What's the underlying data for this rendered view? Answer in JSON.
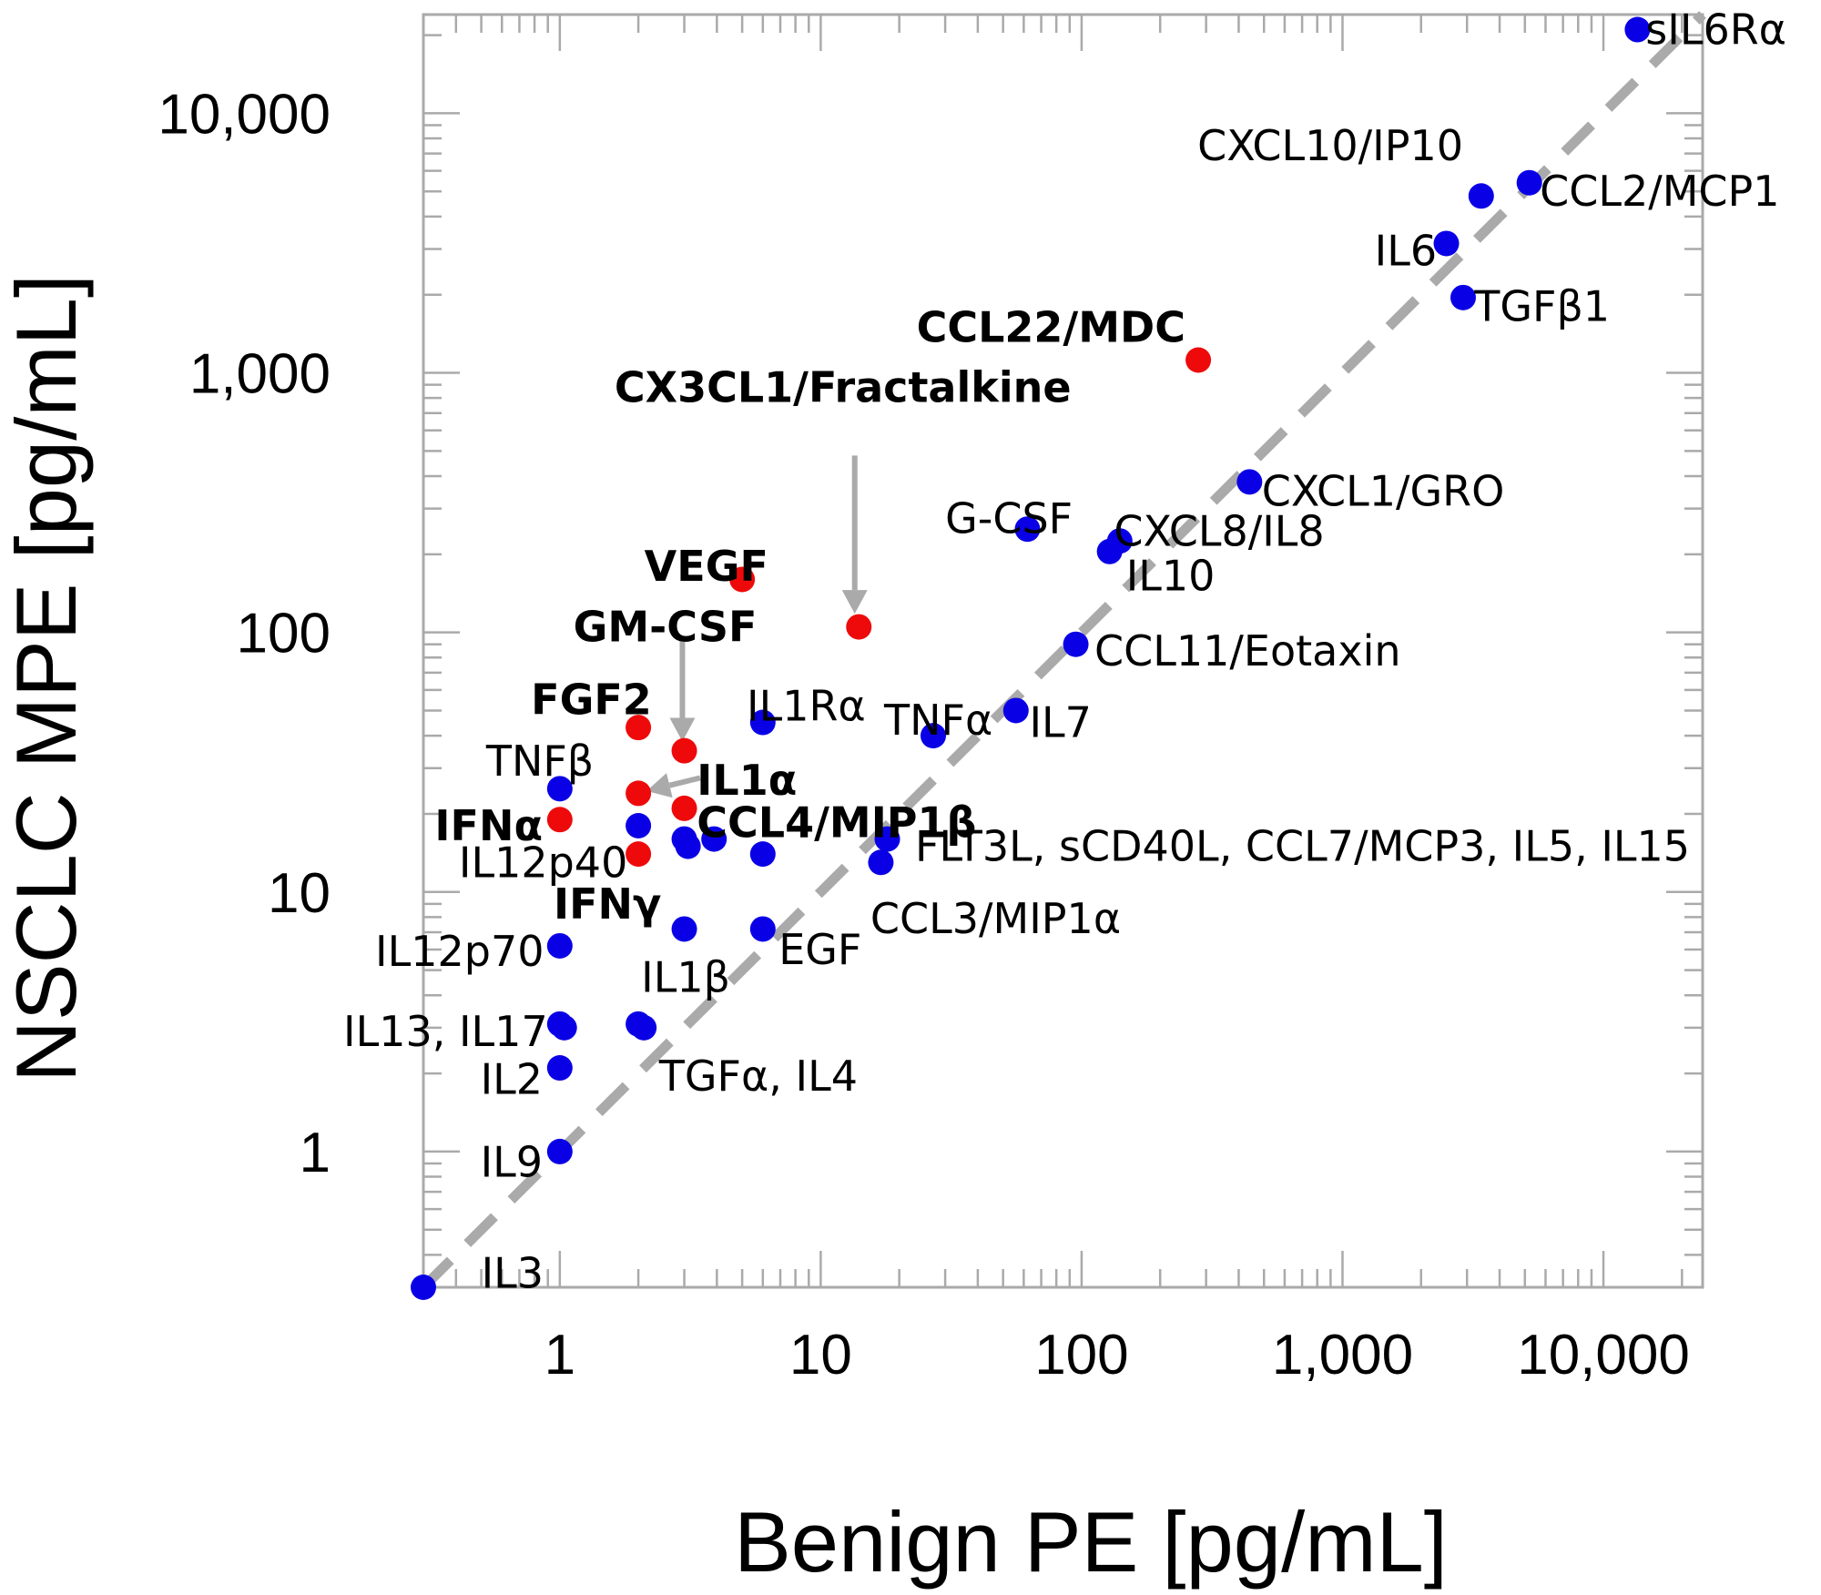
{
  "chart_data": {
    "type": "scatter",
    "title": "",
    "xlabel": "Benign PE [pg/mL]",
    "ylabel": "NSCLC MPE [pg/mL]",
    "x_scale": "log",
    "y_scale": "log",
    "xlim": [
      0.3,
      24000
    ],
    "ylim": [
      0.3,
      24000
    ],
    "grid": false,
    "legend": "none",
    "x_ticks": [
      {
        "value": 1,
        "label": "1"
      },
      {
        "value": 10,
        "label": "10"
      },
      {
        "value": 100,
        "label": "100"
      },
      {
        "value": 1000,
        "label": "1,000"
      },
      {
        "value": 10000,
        "label": "10,000"
      }
    ],
    "y_ticks": [
      {
        "value": 1,
        "label": "1"
      },
      {
        "value": 10,
        "label": "10"
      },
      {
        "value": 100,
        "label": "100"
      },
      {
        "value": 1000,
        "label": "1,000"
      },
      {
        "value": 10000,
        "label": "10,000"
      }
    ],
    "reference_line": {
      "style": "dashed",
      "color": "#aaaaaa",
      "from": [
        0.3,
        0.3
      ],
      "to": [
        24000,
        24000
      ]
    },
    "colors": {
      "unchanged": "#0a00e6",
      "elevated": "#ee0a0a",
      "arrow": "#aaaaaa",
      "axis": "#aaaaaa"
    },
    "points": [
      {
        "x": 0.3,
        "y": 0.3,
        "color": "blue"
      },
      {
        "x": 1.0,
        "y": 1.0,
        "color": "blue"
      },
      {
        "x": 1.0,
        "y": 2.1,
        "color": "blue"
      },
      {
        "x": 1.0,
        "y": 3.1,
        "color": "blue"
      },
      {
        "x": 1.04,
        "y": 3.0,
        "color": "blue"
      },
      {
        "x": 1.0,
        "y": 6.2,
        "color": "blue"
      },
      {
        "x": 1.0,
        "y": 19.0,
        "color": "red"
      },
      {
        "x": 1.0,
        "y": 25.0,
        "color": "blue"
      },
      {
        "x": 2.0,
        "y": 14.0,
        "color": "red"
      },
      {
        "x": 2.0,
        "y": 18.0,
        "color": "blue"
      },
      {
        "x": 2.0,
        "y": 24.0,
        "color": "red"
      },
      {
        "x": 2.0,
        "y": 43.0,
        "color": "red"
      },
      {
        "x": 2.0,
        "y": 3.1,
        "color": "blue"
      },
      {
        "x": 2.1,
        "y": 3.0,
        "color": "blue"
      },
      {
        "x": 3.0,
        "y": 7.2,
        "color": "blue"
      },
      {
        "x": 3.0,
        "y": 16.0,
        "color": "blue"
      },
      {
        "x": 3.1,
        "y": 15.0,
        "color": "blue"
      },
      {
        "x": 3.0,
        "y": 21.0,
        "color": "red"
      },
      {
        "x": 3.0,
        "y": 35.0,
        "color": "red"
      },
      {
        "x": 3.9,
        "y": 16.0,
        "color": "blue"
      },
      {
        "x": 5.0,
        "y": 160.0,
        "color": "red"
      },
      {
        "x": 6.0,
        "y": 7.2,
        "color": "blue"
      },
      {
        "x": 6.0,
        "y": 14.0,
        "color": "blue"
      },
      {
        "x": 6.0,
        "y": 45.0,
        "color": "blue"
      },
      {
        "x": 14.0,
        "y": 105.0,
        "color": "red"
      },
      {
        "x": 17.0,
        "y": 13.0,
        "color": "blue"
      },
      {
        "x": 18.0,
        "y": 16.0,
        "color": "blue"
      },
      {
        "x": 27.0,
        "y": 40.0,
        "color": "blue"
      },
      {
        "x": 56.0,
        "y": 50.0,
        "color": "blue"
      },
      {
        "x": 62.0,
        "y": 250.0,
        "color": "blue"
      },
      {
        "x": 95.0,
        "y": 90.0,
        "color": "blue"
      },
      {
        "x": 128.0,
        "y": 205.0,
        "color": "blue"
      },
      {
        "x": 140.0,
        "y": 225.0,
        "color": "blue"
      },
      {
        "x": 280.0,
        "y": 1120.0,
        "color": "red"
      },
      {
        "x": 440.0,
        "y": 380.0,
        "color": "blue"
      },
      {
        "x": 2500.0,
        "y": 3150.0,
        "color": "blue"
      },
      {
        "x": 2900.0,
        "y": 1950.0,
        "color": "blue"
      },
      {
        "x": 3400.0,
        "y": 4800.0,
        "color": "blue"
      },
      {
        "x": 5200.0,
        "y": 5400.0,
        "color": "blue"
      },
      {
        "x": 13500.0,
        "y": 21000.0,
        "color": "blue"
      }
    ],
    "annotations": [
      {
        "text": "sIL6Rα",
        "x": 14500,
        "y": 21000,
        "anchor": "start",
        "bold": false
      },
      {
        "text": "CXCL10/IP10",
        "x": 2900,
        "y": 7500,
        "anchor": "end",
        "bold": false
      },
      {
        "text": "CCL2/MCP1",
        "x": 5700,
        "y": 5000,
        "anchor": "start",
        "bold": false
      },
      {
        "text": "IL6",
        "x": 2300,
        "y": 2950,
        "anchor": "end",
        "bold": false
      },
      {
        "text": "TGFβ1",
        "x": 3200,
        "y": 1800,
        "anchor": "start",
        "bold": false
      },
      {
        "text": "CCL22/MDC",
        "x": 250,
        "y": 1500,
        "anchor": "end",
        "bold": true
      },
      {
        "text": "CX3CL1/Fractalkine",
        "x": 1.62,
        "y": 880,
        "anchor": "start",
        "bold": true
      },
      {
        "text": "CXCL1/GRO",
        "x": 490,
        "y": 350,
        "anchor": "start",
        "bold": false
      },
      {
        "text": "G-CSF",
        "x": 30,
        "y": 275,
        "anchor": "start",
        "bold": false
      },
      {
        "text": "CXCL8/IL8",
        "x": 133,
        "y": 245,
        "anchor": "start",
        "bold": false
      },
      {
        "text": "IL10",
        "x": 148,
        "y": 165,
        "anchor": "start",
        "bold": false
      },
      {
        "text": "VEGF",
        "x": 6.3,
        "y": 180,
        "anchor": "end",
        "bold": true
      },
      {
        "text": "GM-CSF",
        "x": 5.7,
        "y": 105,
        "anchor": "end",
        "bold": true
      },
      {
        "text": "CCL11/Eotaxin",
        "x": 112,
        "y": 85,
        "anchor": "start",
        "bold": false
      },
      {
        "text": "IL1Rα",
        "x": 5.2,
        "y": 52,
        "anchor": "start",
        "bold": false
      },
      {
        "text": "FGF2",
        "x": 2.25,
        "y": 55,
        "anchor": "end",
        "bold": true
      },
      {
        "text": "TNFα",
        "x": 17.5,
        "y": 46,
        "anchor": "start",
        "bold": false
      },
      {
        "text": "IL7",
        "x": 63,
        "y": 45,
        "anchor": "start",
        "bold": false
      },
      {
        "text": "TNFβ",
        "x": 1.35,
        "y": 32,
        "anchor": "end",
        "bold": false
      },
      {
        "text": "IL1α",
        "x": 3.35,
        "y": 27,
        "anchor": "start",
        "bold": true
      },
      {
        "text": "IFNα",
        "x": 0.86,
        "y": 18,
        "anchor": "end",
        "bold": true
      },
      {
        "text": "CCL4/MIP1β",
        "x": 3.35,
        "y": 18.5,
        "anchor": "start",
        "bold": true
      },
      {
        "text": "IL12p40",
        "x": 1.82,
        "y": 13,
        "anchor": "end",
        "bold": false
      },
      {
        "text": "FLT3L, sCD40L, CCL7/MCP3, IL5, IL15",
        "x": 23,
        "y": 15,
        "anchor": "start",
        "bold": false
      },
      {
        "text": "IFNγ",
        "x": 2.45,
        "y": 9.0,
        "anchor": "end",
        "bold": true
      },
      {
        "text": "CCL3/MIP1α",
        "x": 15.5,
        "y": 7.9,
        "anchor": "start",
        "bold": false
      },
      {
        "text": "IL12p70",
        "x": 0.87,
        "y": 5.9,
        "anchor": "end",
        "bold": false
      },
      {
        "text": "EGF",
        "x": 6.9,
        "y": 6.0,
        "anchor": "start",
        "bold": false
      },
      {
        "text": "IL1β",
        "x": 2.05,
        "y": 4.7,
        "anchor": "start",
        "bold": false
      },
      {
        "text": "IL13, IL17",
        "x": 0.9,
        "y": 2.9,
        "anchor": "end",
        "bold": false
      },
      {
        "text": "TGFα, IL4",
        "x": 2.4,
        "y": 1.95,
        "anchor": "start",
        "bold": false
      },
      {
        "text": "IL2",
        "x": 0.86,
        "y": 1.9,
        "anchor": "end",
        "bold": false
      },
      {
        "text": "IL9",
        "x": 0.86,
        "y": 0.91,
        "anchor": "end",
        "bold": false
      },
      {
        "text": "IL3",
        "x": 0.5,
        "y": 0.34,
        "anchor": "start",
        "bold": false
      }
    ],
    "arrows": [
      {
        "label": "CX3CL1/Fractalkine",
        "from": [
          13.5,
          480
        ],
        "to": [
          13.5,
          118
        ]
      },
      {
        "label": "GM-CSF",
        "from": [
          2.95,
          95
        ],
        "to": [
          2.95,
          38
        ]
      },
      {
        "label": "IL1α",
        "from": [
          3.45,
          27.5
        ],
        "to": [
          2.15,
          24.5
        ]
      }
    ]
  }
}
